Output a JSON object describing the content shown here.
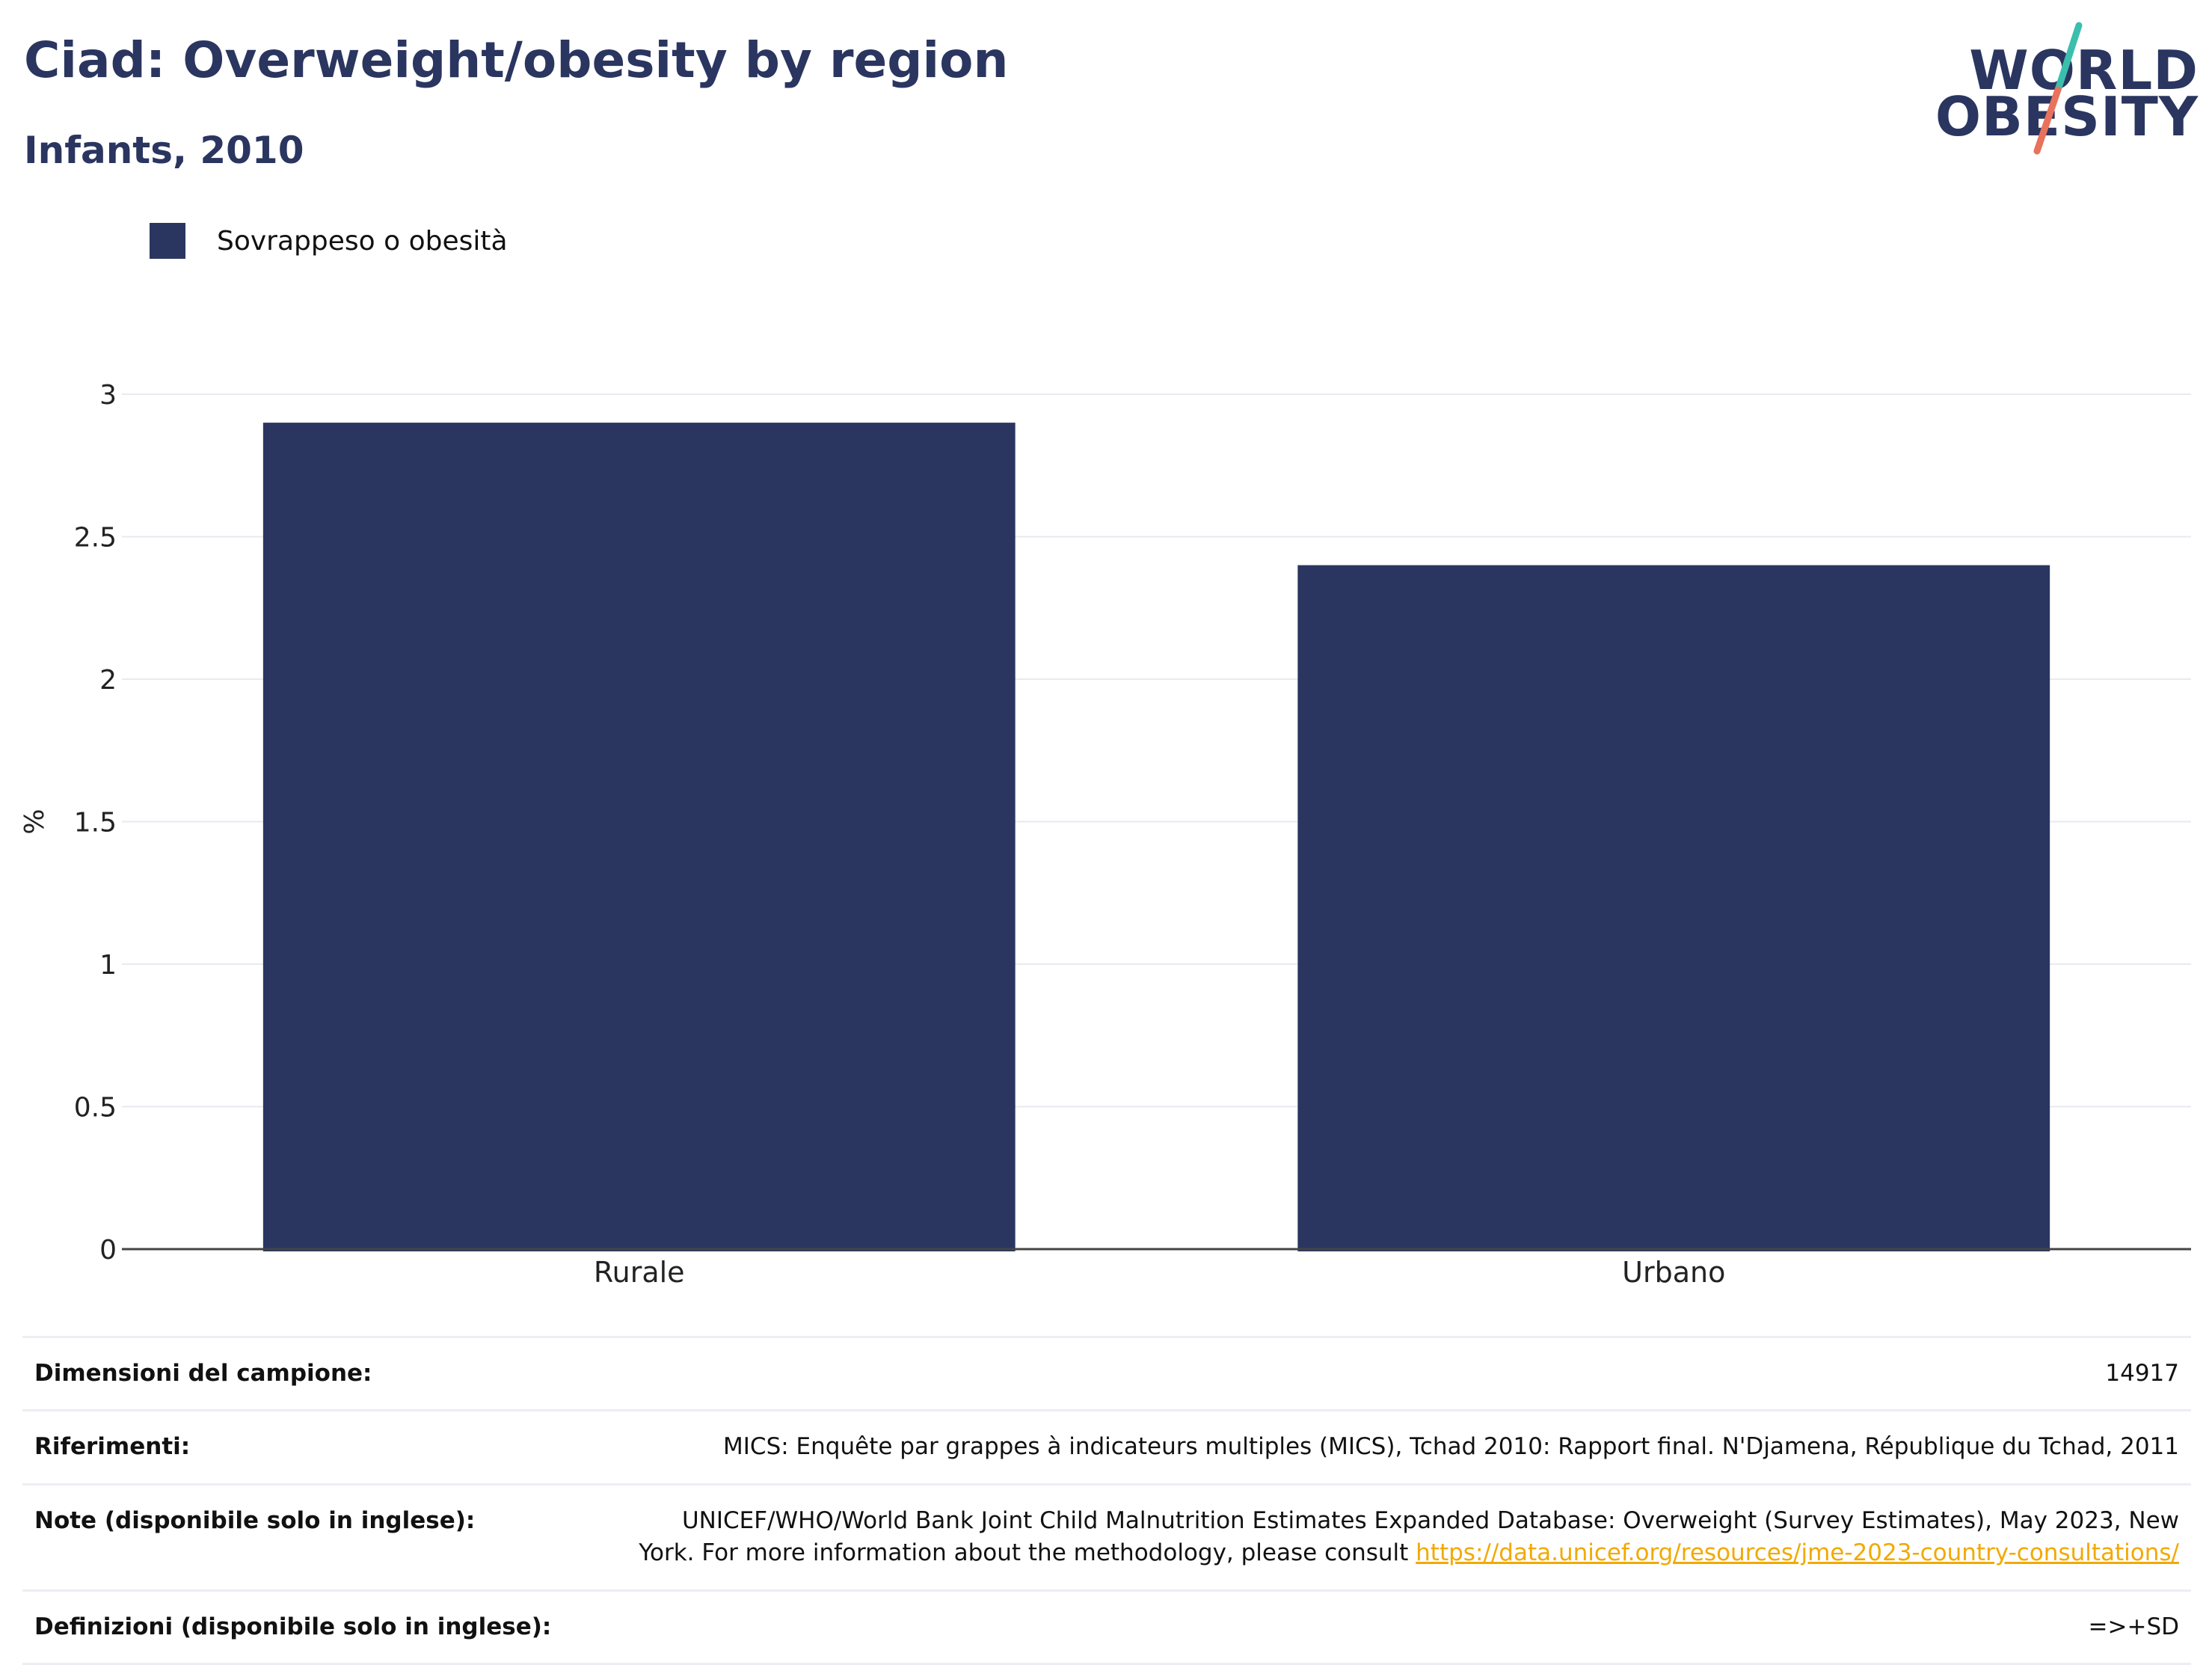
{
  "header": {
    "title": "Ciad: Overweight/obesity by region",
    "subtitle": "Infants, 2010"
  },
  "logo": {
    "line1": "WORLD",
    "line2": "OBESITY",
    "colors": {
      "text": "#2a3560",
      "slash_top": "#3bbfad",
      "slash_bottom": "#e8725c"
    }
  },
  "legend": {
    "label": "Sovrappeso o obesità",
    "color": "#2a3660"
  },
  "chart_data": {
    "type": "bar",
    "title": "Ciad: Overweight/obesity by region",
    "subtitle": "Infants, 2010",
    "categories": [
      "Rurale",
      "Urbano"
    ],
    "series": [
      {
        "name": "Sovrappeso o obesità",
        "values": [
          2.9,
          2.4
        ],
        "color": "#2a3660"
      }
    ],
    "ylabel": "%",
    "xlabel": "",
    "ylim": [
      0,
      3
    ],
    "yticks": [
      0,
      0.5,
      1,
      1.5,
      2,
      2.5,
      3
    ],
    "grid": true,
    "legend_position": "top-left"
  },
  "info": {
    "sample_label": "Dimensioni del campione:",
    "sample_value": "14917",
    "refs_label": "Riferimenti:",
    "refs_value": "MICS: Enquête par grappes à indicateurs multiples (MICS), Tchad 2010: Rapport final. N'Djamena, République du Tchad, 2011",
    "notes_label": "Note (disponibile solo in inglese):",
    "notes_value": "UNICEF/WHO/World Bank Joint Child Malnutrition Estimates Expanded Database: Overweight (Survey Estimates), May 2023, New York. For more information about the methodology, please consult",
    "notes_link": "https://data.unicef.org/resources/jme-2023-country-consultations/",
    "defs_label": "Definizioni (disponibile solo in inglese):",
    "defs_value": "=>+SD"
  }
}
